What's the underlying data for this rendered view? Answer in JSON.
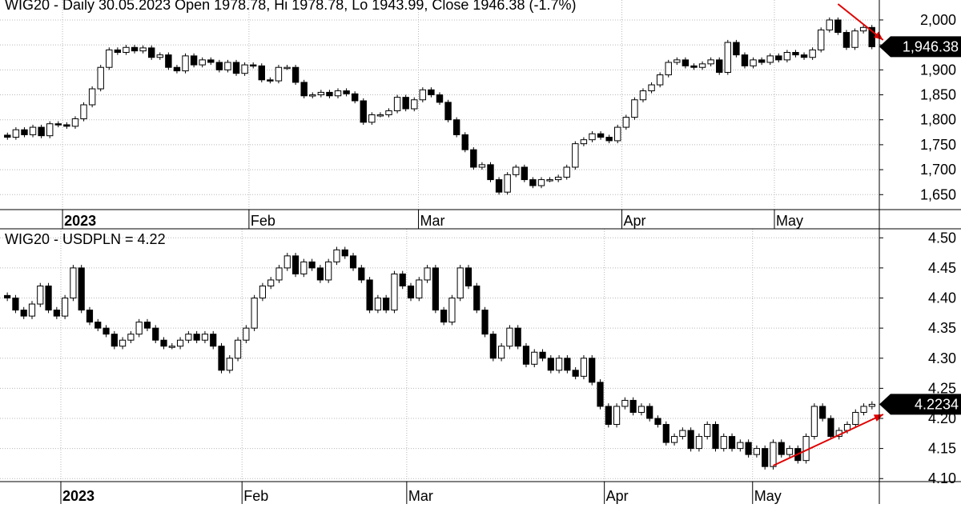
{
  "chart_data": [
    {
      "type": "candlestick",
      "title": "WIG20 - Daily 30.05.2023 Open 1978.78, Hi 1978.78, Lo 1943.99, Close 1946.38 (-1.7%)",
      "last_value_label": "1,946.38",
      "last_value": 1946.38,
      "ylim": [
        1620,
        2040
      ],
      "y_ticks": [
        {
          "value": 1650,
          "label": "1,650"
        },
        {
          "value": 1700,
          "label": "1,700"
        },
        {
          "value": 1750,
          "label": "1,750"
        },
        {
          "value": 1800,
          "label": "1,800"
        },
        {
          "value": 1850,
          "label": "1,850"
        },
        {
          "value": 1900,
          "label": "1,900"
        },
        {
          "value": 1950,
          "label": "1,950"
        },
        {
          "value": 2000,
          "label": "2,000"
        }
      ],
      "month_labels": [
        {
          "label": "2023",
          "index": 7,
          "bold": true
        },
        {
          "label": "Feb",
          "index": 29
        },
        {
          "label": "Mar",
          "index": 49
        },
        {
          "label": "Apr",
          "index": 73
        },
        {
          "label": "May",
          "index": 91
        }
      ],
      "annotation": {
        "type": "arrow",
        "color": "#e00000",
        "direction": "down"
      },
      "closes": [
        1765,
        1780,
        1770,
        1785,
        1768,
        1792,
        1790,
        1787,
        1802,
        1830,
        1862,
        1905,
        1940,
        1935,
        1945,
        1938,
        1944,
        1925,
        1930,
        1905,
        1898,
        1928,
        1910,
        1920,
        1915,
        1900,
        1915,
        1893,
        1910,
        1908,
        1880,
        1878,
        1905,
        1905,
        1875,
        1848,
        1850,
        1855,
        1848,
        1858,
        1852,
        1838,
        1795,
        1810,
        1810,
        1818,
        1845,
        1822,
        1840,
        1860,
        1850,
        1835,
        1800,
        1770,
        1740,
        1705,
        1710,
        1680,
        1655,
        1690,
        1705,
        1680,
        1668,
        1680,
        1680,
        1685,
        1705,
        1752,
        1760,
        1772,
        1765,
        1758,
        1785,
        1805,
        1840,
        1858,
        1870,
        1890,
        1915,
        1920,
        1908,
        1905,
        1912,
        1920,
        1895,
        1955,
        1930,
        1908,
        1920,
        1915,
        1928,
        1920,
        1935,
        1930,
        1925,
        1940,
        1980,
        2000,
        1975,
        1945,
        1978,
        1985,
        1946.38
      ]
    },
    {
      "type": "candlestick",
      "title": "WIG20 - USDPLN = 4.22",
      "last_value_label": "4.2234",
      "last_value": 4.2234,
      "ylim": [
        4.095,
        4.515
      ],
      "y_ticks": [
        {
          "value": 4.1,
          "label": "4.10"
        },
        {
          "value": 4.15,
          "label": "4.15"
        },
        {
          "value": 4.2,
          "label": "4.20"
        },
        {
          "value": 4.25,
          "label": "4.25"
        },
        {
          "value": 4.3,
          "label": "4.30"
        },
        {
          "value": 4.35,
          "label": "4.35"
        },
        {
          "value": 4.4,
          "label": "4.40"
        },
        {
          "value": 4.45,
          "label": "4.45"
        },
        {
          "value": 4.5,
          "label": "4.50"
        }
      ],
      "month_labels": [
        {
          "label": "2023",
          "index": 7,
          "bold": true
        },
        {
          "label": "Feb",
          "index": 29
        },
        {
          "label": "Mar",
          "index": 49
        },
        {
          "label": "Apr",
          "index": 73
        },
        {
          "label": "May",
          "index": 91
        }
      ],
      "annotation": {
        "type": "arrow",
        "color": "#e00000",
        "direction": "up"
      },
      "closes": [
        4.4,
        4.38,
        4.37,
        4.39,
        4.42,
        4.38,
        4.37,
        4.4,
        4.45,
        4.38,
        4.36,
        4.35,
        4.34,
        4.32,
        4.33,
        4.34,
        4.36,
        4.35,
        4.33,
        4.32,
        4.32,
        4.33,
        4.34,
        4.33,
        4.34,
        4.32,
        4.28,
        4.3,
        4.33,
        4.35,
        4.4,
        4.42,
        4.43,
        4.45,
        4.47,
        4.44,
        4.46,
        4.45,
        4.43,
        4.46,
        4.48,
        4.47,
        4.45,
        4.43,
        4.38,
        4.4,
        4.38,
        4.44,
        4.42,
        4.4,
        4.43,
        4.45,
        4.38,
        4.36,
        4.4,
        4.45,
        4.42,
        4.38,
        4.34,
        4.3,
        4.32,
        4.35,
        4.32,
        4.29,
        4.31,
        4.3,
        4.28,
        4.3,
        4.28,
        4.27,
        4.3,
        4.26,
        4.22,
        4.19,
        4.22,
        4.23,
        4.21,
        4.22,
        4.2,
        4.19,
        4.16,
        4.17,
        4.18,
        4.15,
        4.17,
        4.19,
        4.15,
        4.17,
        4.15,
        4.16,
        4.14,
        4.15,
        4.12,
        4.16,
        4.14,
        4.15,
        4.13,
        4.17,
        4.22,
        4.2,
        4.17,
        4.18,
        4.19,
        4.21,
        4.22,
        4.2234
      ]
    }
  ]
}
